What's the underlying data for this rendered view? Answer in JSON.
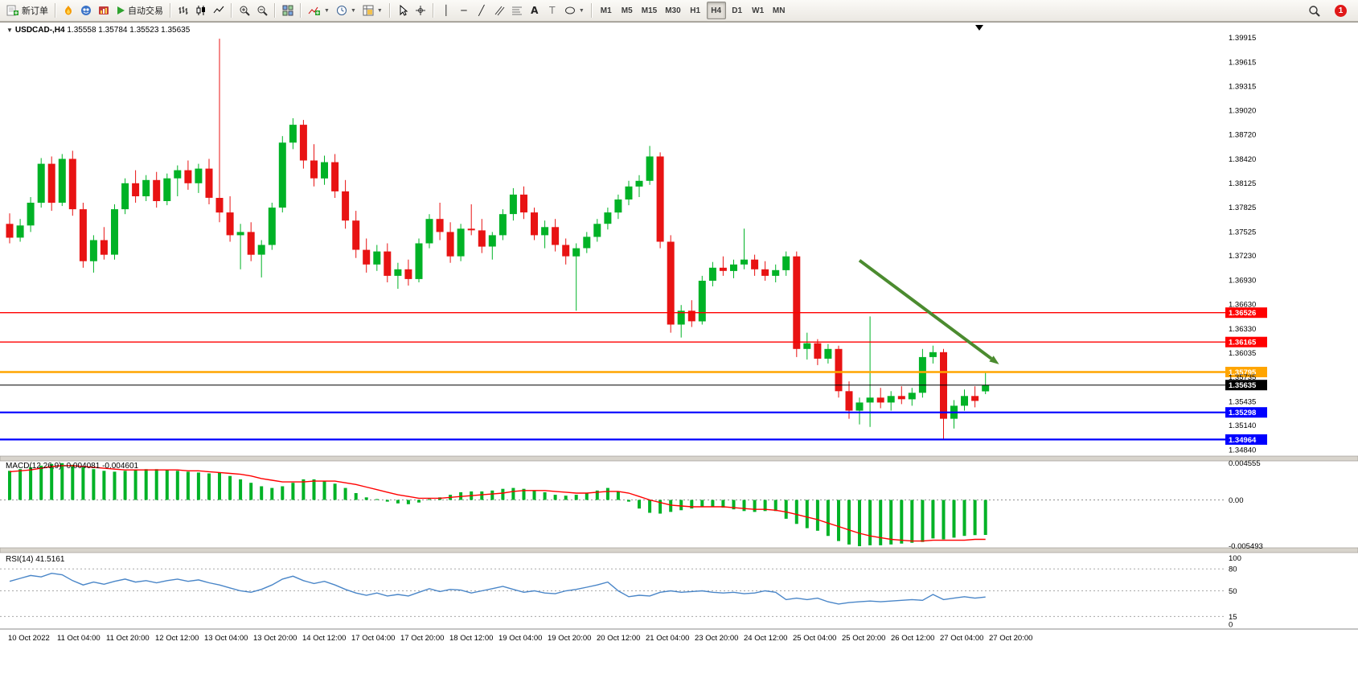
{
  "toolbar": {
    "new_order_label": "新订单",
    "autotrade_label": "自动交易",
    "timeframes": [
      "M1",
      "M5",
      "M15",
      "M30",
      "H1",
      "H4",
      "D1",
      "W1",
      "MN"
    ],
    "active_timeframe": "H4",
    "notification_count": "1",
    "text_tool_label": "A",
    "label_tool_label": "T",
    "vline_glyph": "│",
    "hline_glyph": "─",
    "trendline_glyph": "╱"
  },
  "chart": {
    "title": "USDCAD-,H4",
    "ohlc": "1.35558 1.35784 1.35523 1.35635"
  },
  "chart_data": {
    "type": "candlestick",
    "symbol": "USDCAD-",
    "timeframe": "H4",
    "colors": {
      "up": "#00B226",
      "down": "#E81313",
      "macd_histogram": "#00B226",
      "macd_signal": "#FF0000",
      "rsi_line": "#4A86C8",
      "arrow": "#4B8B2F"
    },
    "candles": [
      [
        1.3762,
        1.3775,
        1.3738,
        1.3745
      ],
      [
        1.3745,
        1.3768,
        1.374,
        1.376
      ],
      [
        1.376,
        1.3795,
        1.3752,
        1.3788
      ],
      [
        1.3788,
        1.3843,
        1.3782,
        1.3836
      ],
      [
        1.3836,
        1.3845,
        1.3778,
        1.3788
      ],
      [
        1.3788,
        1.3848,
        1.3784,
        1.3842
      ],
      [
        1.3842,
        1.3852,
        1.3772,
        1.378
      ],
      [
        1.378,
        1.3788,
        1.3708,
        1.3716
      ],
      [
        1.3716,
        1.3748,
        1.3702,
        1.3742
      ],
      [
        1.3742,
        1.3758,
        1.3718,
        1.3724
      ],
      [
        1.3724,
        1.3786,
        1.3718,
        1.378
      ],
      [
        1.378,
        1.3818,
        1.3774,
        1.3812
      ],
      [
        1.3812,
        1.3828,
        1.3788,
        1.3796
      ],
      [
        1.3796,
        1.3822,
        1.379,
        1.3816
      ],
      [
        1.3816,
        1.3826,
        1.3782,
        1.379
      ],
      [
        1.379,
        1.3824,
        1.3785,
        1.3818
      ],
      [
        1.3818,
        1.3834,
        1.3796,
        1.3828
      ],
      [
        1.3828,
        1.384,
        1.3804,
        1.3812
      ],
      [
        1.3812,
        1.3836,
        1.38,
        1.383
      ],
      [
        1.383,
        1.3842,
        1.3786,
        1.3794
      ],
      [
        1.3794,
        1.399,
        1.3764,
        1.3776
      ],
      [
        1.3776,
        1.3796,
        1.374,
        1.3748
      ],
      [
        1.3748,
        1.3762,
        1.3706,
        1.3752
      ],
      [
        1.3752,
        1.3764,
        1.3716,
        1.3724
      ],
      [
        1.3724,
        1.3742,
        1.3696,
        1.3736
      ],
      [
        1.3736,
        1.3788,
        1.373,
        1.3782
      ],
      [
        1.3782,
        1.387,
        1.3776,
        1.3862
      ],
      [
        1.3862,
        1.3892,
        1.3854,
        1.3884
      ],
      [
        1.3884,
        1.389,
        1.383,
        1.384
      ],
      [
        1.384,
        1.386,
        1.3808,
        1.3818
      ],
      [
        1.3818,
        1.3846,
        1.381,
        1.3838
      ],
      [
        1.3838,
        1.3848,
        1.3794,
        1.3802
      ],
      [
        1.3802,
        1.3816,
        1.3756,
        1.3766
      ],
      [
        1.3766,
        1.3778,
        1.372,
        1.373
      ],
      [
        1.373,
        1.3744,
        1.3702,
        1.3712
      ],
      [
        1.3712,
        1.3736,
        1.3704,
        1.3728
      ],
      [
        1.3728,
        1.3738,
        1.369,
        1.3698
      ],
      [
        1.3698,
        1.3714,
        1.3682,
        1.3706
      ],
      [
        1.3706,
        1.3718,
        1.3686,
        1.3694
      ],
      [
        1.3694,
        1.3744,
        1.369,
        1.3738
      ],
      [
        1.3738,
        1.3774,
        1.3732,
        1.3768
      ],
      [
        1.3768,
        1.3788,
        1.3742,
        1.3752
      ],
      [
        1.3752,
        1.3764,
        1.3714,
        1.3722
      ],
      [
        1.3722,
        1.3762,
        1.3716,
        1.3756
      ],
      [
        1.3756,
        1.3786,
        1.3748,
        1.3754
      ],
      [
        1.3754,
        1.3768,
        1.3726,
        1.3734
      ],
      [
        1.3734,
        1.3752,
        1.3718,
        1.3748
      ],
      [
        1.3748,
        1.378,
        1.3742,
        1.3774
      ],
      [
        1.3774,
        1.3806,
        1.3766,
        1.3798
      ],
      [
        1.3798,
        1.3808,
        1.3768,
        1.3776
      ],
      [
        1.3776,
        1.3782,
        1.3742,
        1.3748
      ],
      [
        1.3748,
        1.3766,
        1.3732,
        1.3758
      ],
      [
        1.3758,
        1.3768,
        1.3728,
        1.3736
      ],
      [
        1.3736,
        1.3744,
        1.3712,
        1.3722
      ],
      [
        1.3722,
        1.3738,
        1.3655,
        1.3732
      ],
      [
        1.3732,
        1.3752,
        1.3726,
        1.3746
      ],
      [
        1.3746,
        1.3768,
        1.374,
        1.3762
      ],
      [
        1.3762,
        1.3782,
        1.3755,
        1.3776
      ],
      [
        1.3776,
        1.3798,
        1.3768,
        1.3792
      ],
      [
        1.3792,
        1.3815,
        1.3785,
        1.3808
      ],
      [
        1.3808,
        1.3822,
        1.3795,
        1.3815
      ],
      [
        1.3815,
        1.3858,
        1.381,
        1.3845
      ],
      [
        1.3845,
        1.385,
        1.3732,
        1.374
      ],
      [
        1.374,
        1.3748,
        1.3628,
        1.3638
      ],
      [
        1.3638,
        1.3662,
        1.3622,
        1.3655
      ],
      [
        1.3655,
        1.3668,
        1.3635,
        1.3642
      ],
      [
        1.3642,
        1.3698,
        1.3638,
        1.3692
      ],
      [
        1.3692,
        1.3715,
        1.3685,
        1.3708
      ],
      [
        1.3708,
        1.3722,
        1.3698,
        1.3704
      ],
      [
        1.3704,
        1.3718,
        1.3695,
        1.3712
      ],
      [
        1.3712,
        1.3756,
        1.3706,
        1.3718
      ],
      [
        1.3718,
        1.3724,
        1.3698,
        1.3706
      ],
      [
        1.3706,
        1.3716,
        1.3692,
        1.3698
      ],
      [
        1.3698,
        1.3712,
        1.369,
        1.3705
      ],
      [
        1.3705,
        1.3728,
        1.3698,
        1.3722
      ],
      [
        1.3722,
        1.3728,
        1.3598,
        1.3608
      ],
      [
        1.3608,
        1.3628,
        1.3595,
        1.3615
      ],
      [
        1.3615,
        1.362,
        1.3588,
        1.3596
      ],
      [
        1.3596,
        1.3614,
        1.359,
        1.3608
      ],
      [
        1.3608,
        1.3612,
        1.3548,
        1.3556
      ],
      [
        1.3556,
        1.3568,
        1.3522,
        1.3532
      ],
      [
        1.3532,
        1.3548,
        1.3515,
        1.3542
      ],
      [
        1.3542,
        1.3648,
        1.3512,
        1.3548
      ],
      [
        1.3548,
        1.356,
        1.3535,
        1.3542
      ],
      [
        1.3542,
        1.3556,
        1.3532,
        1.355
      ],
      [
        1.355,
        1.3562,
        1.354,
        1.3546
      ],
      [
        1.3546,
        1.356,
        1.3538,
        1.3554
      ],
      [
        1.3554,
        1.3608,
        1.3548,
        1.3598
      ],
      [
        1.3598,
        1.3612,
        1.359,
        1.3604
      ],
      [
        1.3604,
        1.3608,
        1.3496,
        1.3522
      ],
      [
        1.3522,
        1.3545,
        1.351,
        1.3538
      ],
      [
        1.3538,
        1.3558,
        1.3532,
        1.355
      ],
      [
        1.355,
        1.3562,
        1.3536,
        1.3544
      ],
      [
        1.35558,
        1.35784,
        1.35523,
        1.35635
      ]
    ],
    "price_axis_labels": [
      "1.39915",
      "1.39615",
      "1.39315",
      "1.39020",
      "1.38720",
      "1.38420",
      "1.38125",
      "1.37825",
      "1.37525",
      "1.37230",
      "1.36930",
      "1.36630",
      "1.36330",
      "1.36035",
      "1.35735",
      "1.35435",
      "1.35140",
      "1.34840"
    ],
    "time_axis_labels": [
      "10 Oct 2022",
      "11 Oct 04:00",
      "11 Oct 20:00",
      "12 Oct 12:00",
      "13 Oct 04:00",
      "13 Oct 20:00",
      "14 Oct 12:00",
      "17 Oct 04:00",
      "17 Oct 20:00",
      "18 Oct 12:00",
      "19 Oct 04:00",
      "19 Oct 20:00",
      "20 Oct 12:00",
      "21 Oct 04:00",
      "23 Oct 20:00",
      "24 Oct 12:00",
      "25 Oct 04:00",
      "25 Oct 20:00",
      "26 Oct 12:00",
      "27 Oct 04:00",
      "27 Oct 20:00"
    ],
    "hlines": [
      {
        "price": 1.36526,
        "label": "1.36526",
        "color": "#FF0000",
        "width": 1.4
      },
      {
        "price": 1.36165,
        "label": "1.36165",
        "color": "#FF0000",
        "width": 1.4
      },
      {
        "price": 1.35795,
        "label": "1.35795",
        "color": "#FFA500",
        "width": 2.6
      },
      {
        "price": 1.35635,
        "label": "1.35635",
        "color": "#000000",
        "width": 1
      },
      {
        "price": 1.35298,
        "label": "1.35298",
        "color": "#0000FF",
        "width": 2.2
      },
      {
        "price": 1.34964,
        "label": "1.34964",
        "color": "#0000FF",
        "width": 2.2
      }
    ],
    "bid_price": "1.35635",
    "arrow": {
      "i1": 81,
      "p1": 1.3717,
      "i2": 94.3,
      "p2": 1.3589
    },
    "macd": {
      "label": "MACD(12,26,9)",
      "value": "-0.004081",
      "signal_value": "-0.004601",
      "axis_labels": [
        "0.004555",
        "0.00",
        "-0.005493"
      ],
      "range_max": 0.004555,
      "range_min": -0.005493,
      "histogram": [
        0.0034,
        0.0036,
        0.0038,
        0.004,
        0.0042,
        0.0043,
        0.0041,
        0.0038,
        0.0036,
        0.0034,
        0.0033,
        0.0034,
        0.0035,
        0.0036,
        0.0036,
        0.0035,
        0.0034,
        0.0033,
        0.0032,
        0.0031,
        0.0032,
        0.0028,
        0.0024,
        0.002,
        0.0016,
        0.0014,
        0.0016,
        0.002,
        0.0024,
        0.0024,
        0.0022,
        0.0019,
        0.0014,
        0.0008,
        0.0003,
        0.0001,
        -0.0002,
        -0.0004,
        -0.0005,
        -0.0003,
        0.0001,
        0.0003,
        0.0006,
        0.0009,
        0.001,
        0.001,
        0.0011,
        0.0013,
        0.0014,
        0.0013,
        0.0011,
        0.0009,
        0.0006,
        0.0005,
        0.0006,
        0.0008,
        0.0011,
        0.0014,
        0.001,
        -0.0002,
        -0.001,
        -0.0015,
        -0.0016,
        -0.0014,
        -0.0012,
        -0.001,
        -0.0008,
        -0.0008,
        -0.0009,
        -0.0011,
        -0.0013,
        -0.0014,
        -0.0013,
        -0.0013,
        -0.0022,
        -0.0028,
        -0.0033,
        -0.0036,
        -0.0042,
        -0.0048,
        -0.0052,
        -0.0054,
        -0.0053,
        -0.0053,
        -0.0052,
        -0.0051,
        -0.005,
        -0.0049,
        -0.0045,
        -0.0046,
        -0.0044,
        -0.0042,
        -0.0041,
        -0.004081
      ],
      "signal": [
        0.0033,
        0.0034,
        0.0035,
        0.0037,
        0.0039,
        0.004,
        0.004,
        0.0039,
        0.0038,
        0.0037,
        0.0036,
        0.0035,
        0.0035,
        0.0035,
        0.0035,
        0.0035,
        0.0035,
        0.0034,
        0.0034,
        0.0033,
        0.0032,
        0.0031,
        0.003,
        0.0028,
        0.0025,
        0.0023,
        0.0021,
        0.0021,
        0.0021,
        0.0022,
        0.0022,
        0.0022,
        0.002,
        0.0018,
        0.0015,
        0.0012,
        0.0009,
        0.0006,
        0.0004,
        0.0002,
        0.0002,
        0.0002,
        0.0003,
        0.0004,
        0.0005,
        0.0006,
        0.0007,
        0.0008,
        0.001,
        0.0011,
        0.0011,
        0.0011,
        0.001,
        0.0009,
        0.0008,
        0.0008,
        0.0009,
        0.001,
        0.001,
        0.0008,
        0.0004,
        0.0,
        -0.0003,
        -0.0006,
        -0.0007,
        -0.0008,
        -0.0008,
        -0.0008,
        -0.0008,
        -0.0009,
        -0.001,
        -0.0011,
        -0.0011,
        -0.0012,
        -0.0014,
        -0.0017,
        -0.002,
        -0.0023,
        -0.0027,
        -0.0031,
        -0.0035,
        -0.0039,
        -0.0042,
        -0.0044,
        -0.0046,
        -0.0047,
        -0.0048,
        -0.0048,
        -0.0047,
        -0.0047,
        -0.0047,
        -0.0047,
        -0.0046,
        -0.004601
      ]
    },
    "rsi": {
      "label": "RSI(14)",
      "value": "41.5161",
      "levels": [
        80,
        50,
        15
      ],
      "axis_labels": [
        "100",
        "80",
        "50",
        "15",
        "0"
      ],
      "values": [
        63,
        67,
        71,
        69,
        74,
        72,
        64,
        58,
        62,
        59,
        63,
        66,
        62,
        64,
        61,
        64,
        66,
        63,
        65,
        61,
        58,
        54,
        50,
        48,
        52,
        58,
        66,
        70,
        64,
        60,
        63,
        58,
        52,
        47,
        44,
        47,
        43,
        45,
        43,
        48,
        53,
        49,
        52,
        51,
        47,
        50,
        53,
        56,
        52,
        48,
        50,
        47,
        46,
        50,
        52,
        55,
        58,
        62,
        50,
        42,
        44,
        43,
        48,
        50,
        48,
        49,
        50,
        48,
        47,
        48,
        46,
        47,
        50,
        48,
        38,
        40,
        38,
        40,
        35,
        32,
        34,
        35,
        36,
        35,
        36,
        37,
        38,
        37,
        45,
        38,
        40,
        42,
        40,
        41.5
      ]
    }
  }
}
